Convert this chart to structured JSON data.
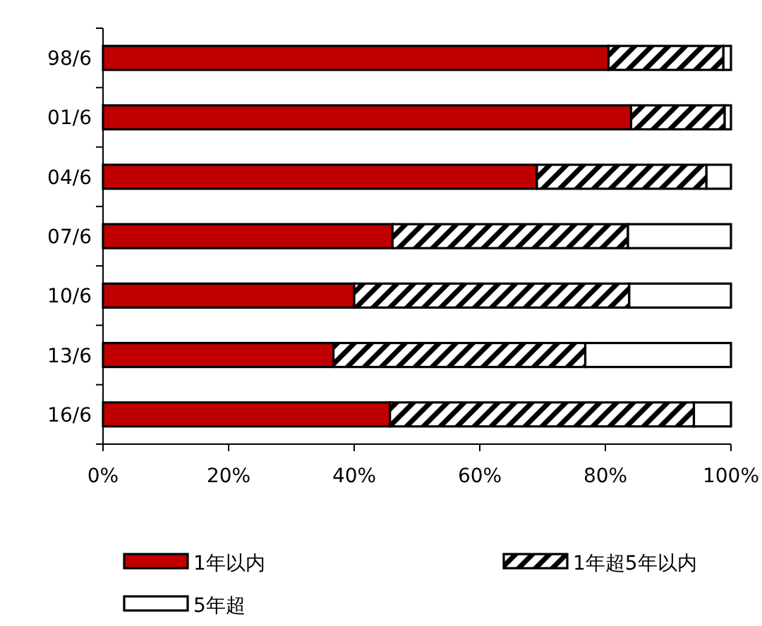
{
  "chart_data": {
    "type": "bar",
    "orientation": "horizontal",
    "stacked": true,
    "categories": [
      "98/6",
      "01/6",
      "04/6",
      "07/6",
      "10/6",
      "13/6",
      "16/6"
    ],
    "series": [
      {
        "name": "1年以内",
        "color": "#c00000",
        "values": [
          80.5,
          84.1,
          69.1,
          46.1,
          40.0,
          36.7,
          45.7
        ]
      },
      {
        "name": "1年超5年以内",
        "color": "#000000",
        "values": [
          18.3,
          14.9,
          27.0,
          37.5,
          43.8,
          40.1,
          48.4
        ]
      },
      {
        "name": "5年超",
        "color": "#ffffff",
        "values": [
          1.2,
          1.0,
          3.9,
          16.4,
          16.2,
          23.2,
          5.9
        ]
      }
    ],
    "xlim": [
      0,
      100
    ],
    "xticks": [
      {
        "value": 0,
        "label": "0%"
      },
      {
        "value": 20,
        "label": "20%"
      },
      {
        "value": 40,
        "label": "40%"
      },
      {
        "value": 60,
        "label": "60%"
      },
      {
        "value": 80,
        "label": "80%"
      },
      {
        "value": 100,
        "label": "100%"
      }
    ],
    "legend": "bottom"
  }
}
